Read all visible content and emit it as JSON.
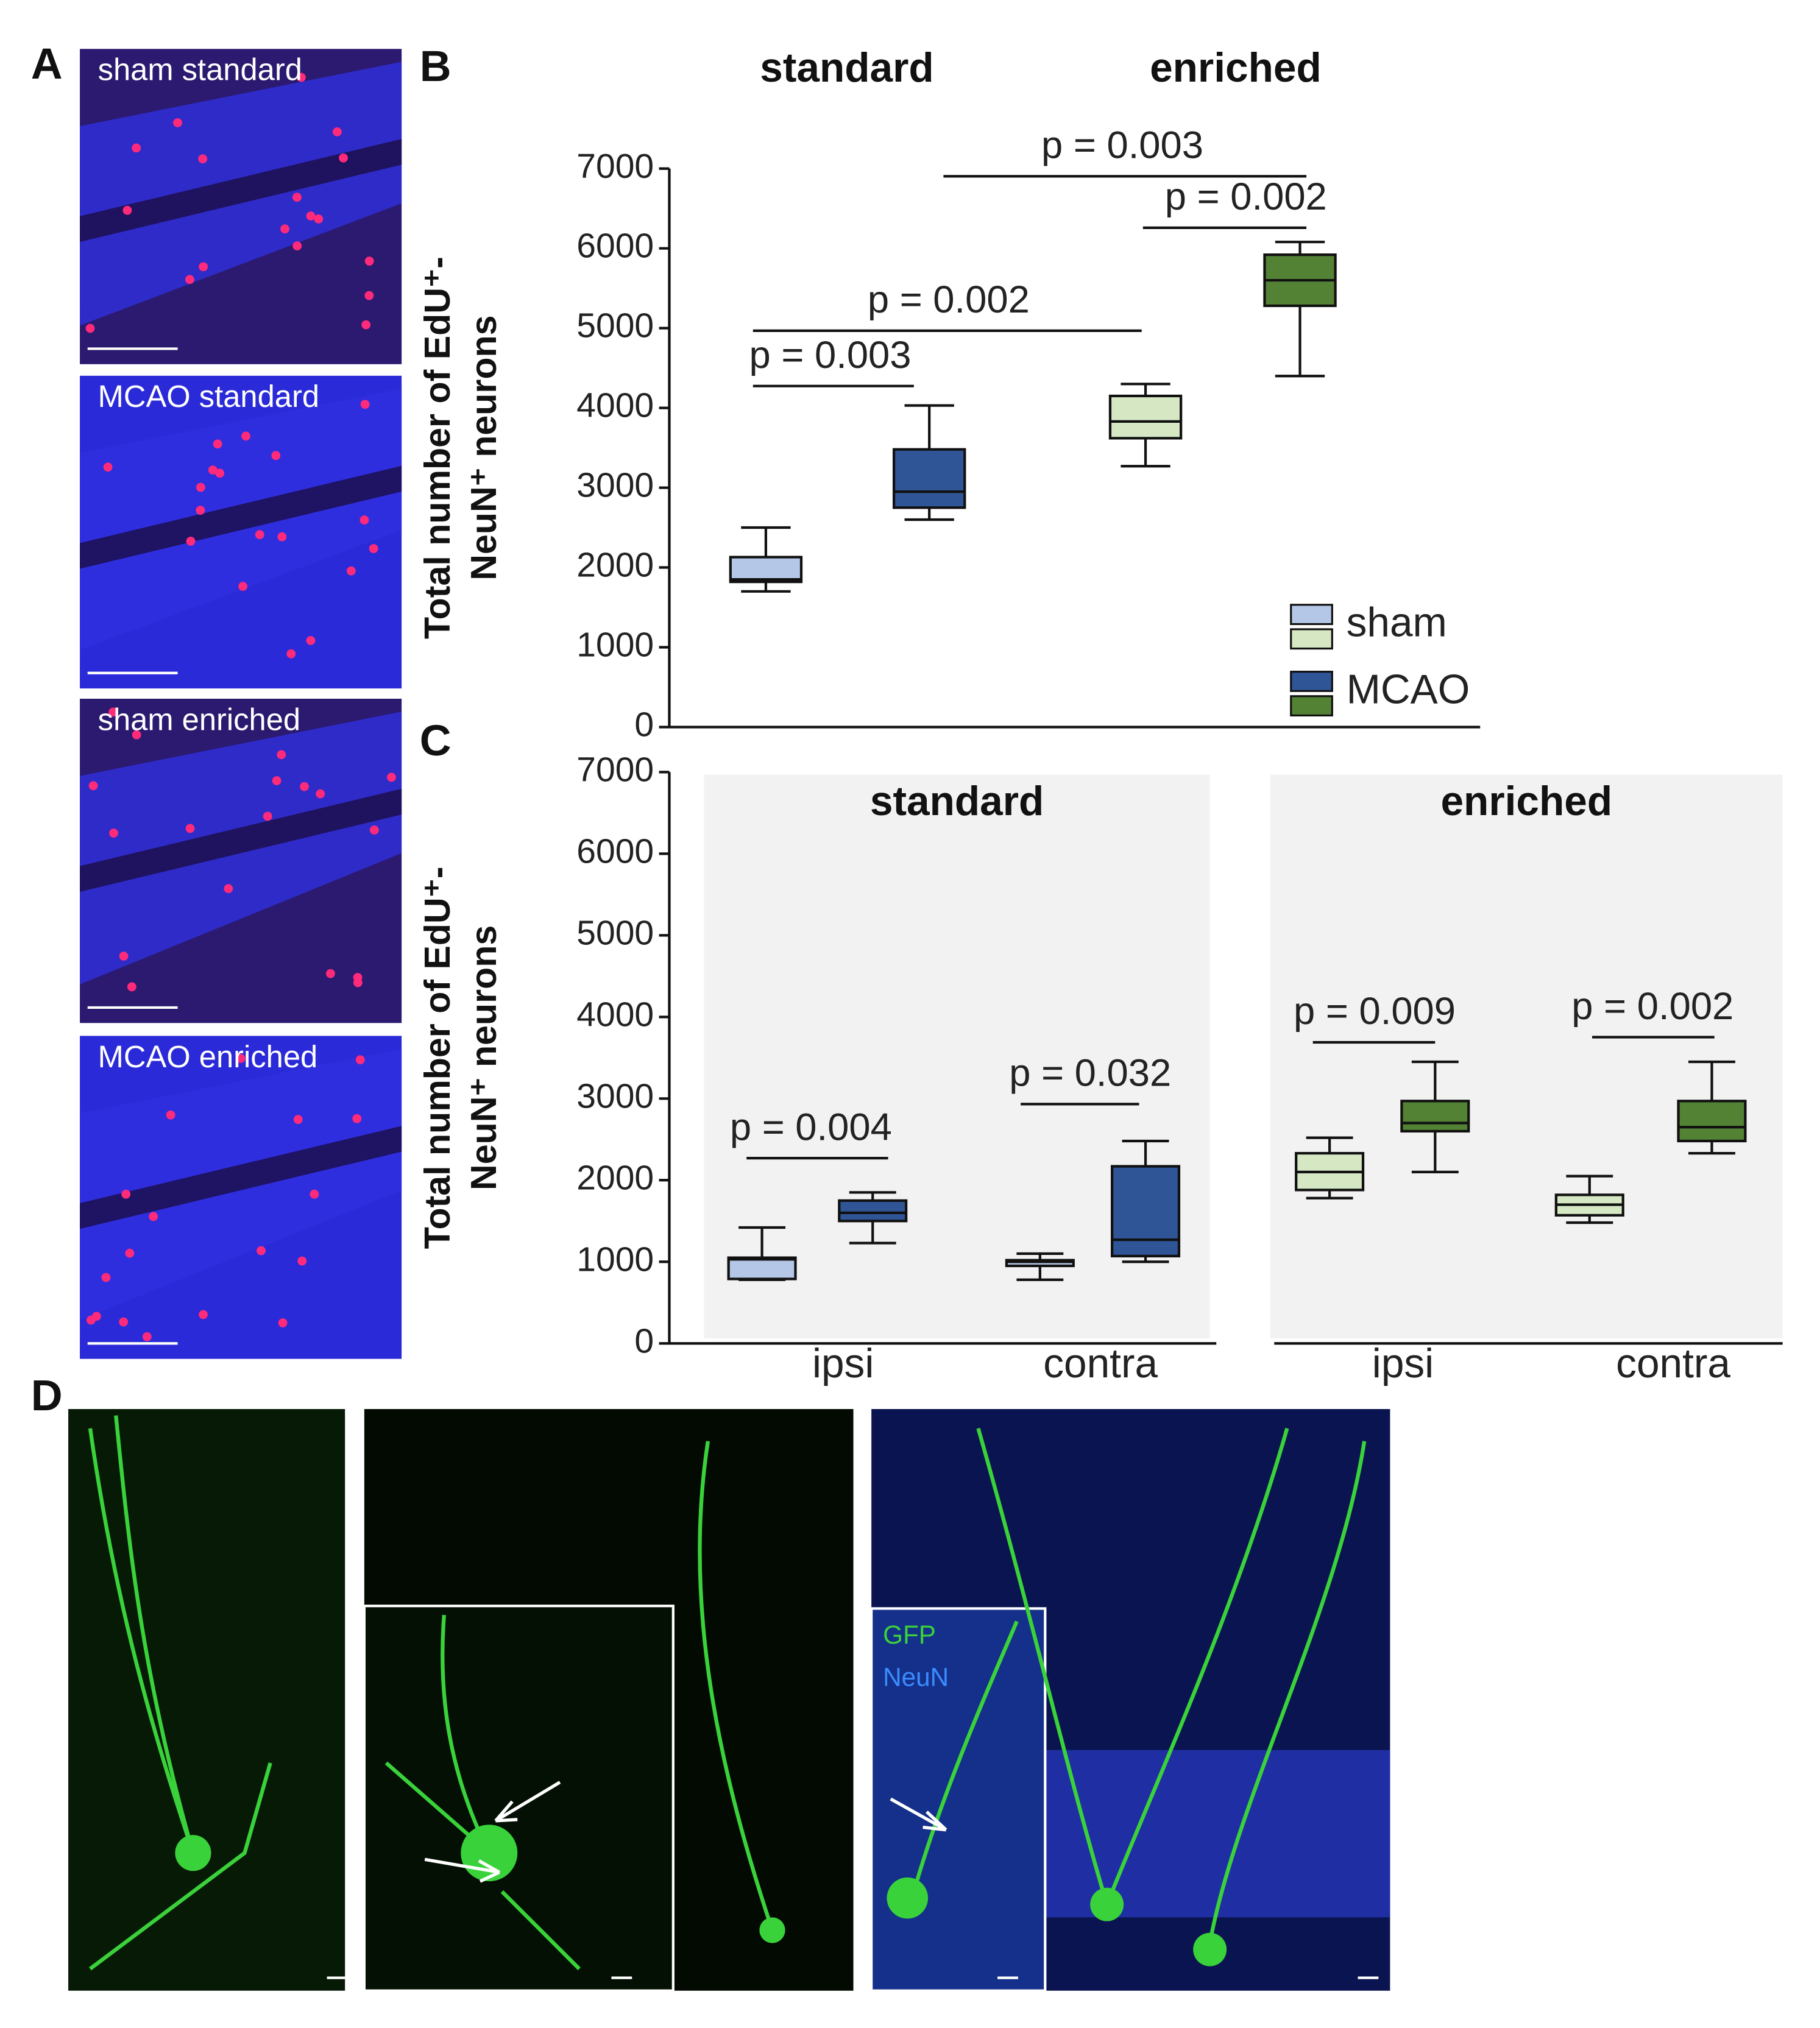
{
  "panel_labels": [
    "A",
    "B",
    "C",
    "D"
  ],
  "panel_a_labels": [
    "sham standard",
    "MCAO standard",
    "sham enriched",
    "MCAO enriched"
  ],
  "panel_d_labels": [
    "GFP",
    "NeuN"
  ],
  "chart_data": [
    {
      "type": "box",
      "ylabel": [
        "Total number of EdU⁺-",
        "NeuN⁺ neurons"
      ],
      "ylim": [
        0,
        7000
      ],
      "yticks": [
        0,
        1000,
        2000,
        3000,
        4000,
        5000,
        6000,
        7000
      ],
      "groups": [
        {
          "title": "standard",
          "boxes": [
            {
              "min": 1700,
              "q1": 1820,
              "median": 1850,
              "q3": 2130,
              "max": 2500,
              "color": "#b4c7e7"
            },
            {
              "min": 2600,
              "q1": 2750,
              "median": 2950,
              "q3": 3480,
              "max": 4030,
              "color": "#2f5597"
            }
          ]
        },
        {
          "title": "enriched",
          "boxes": [
            {
              "min": 3270,
              "q1": 3620,
              "median": 3830,
              "q3": 4150,
              "max": 4300,
              "color": "#d5e8c3"
            },
            {
              "min": 4400,
              "q1": 5280,
              "median": 5600,
              "q3": 5920,
              "max": 6080,
              "color": "#548235"
            }
          ]
        }
      ],
      "annotations": [
        "p = 0.003",
        "p = 0.002",
        "p = 0.003",
        "p = 0.002"
      ],
      "legend": [
        {
          "name": "sham",
          "colors": [
            "#b4c7e7",
            "#d5e8c3"
          ]
        },
        {
          "name": "MCAO",
          "colors": [
            "#2f5597",
            "#548235"
          ]
        }
      ]
    },
    {
      "type": "box",
      "ylabel": [
        "Total number of EdU⁺-",
        "NeuN⁺ neurons"
      ],
      "ylim": [
        0,
        7000
      ],
      "yticks": [
        0,
        1000,
        2000,
        3000,
        4000,
        5000,
        6000,
        7000
      ],
      "facets": [
        {
          "title": "standard",
          "groups": [
            {
              "label": "ipsi",
              "annotation": "p = 0.004",
              "boxes": [
                {
                  "min": 780,
                  "q1": 790,
                  "median": 1030,
                  "q3": 1050,
                  "max": 1420,
                  "color": "#b4c7e7"
                },
                {
                  "min": 1230,
                  "q1": 1500,
                  "median": 1600,
                  "q3": 1750,
                  "max": 1850,
                  "color": "#2f5597"
                }
              ]
            },
            {
              "label": "contra",
              "annotation": "p = 0.032",
              "boxes": [
                {
                  "min": 780,
                  "q1": 950,
                  "median": 1000,
                  "q3": 1020,
                  "max": 1100,
                  "color": "#b4c7e7"
                },
                {
                  "min": 1000,
                  "q1": 1070,
                  "median": 1270,
                  "q3": 2170,
                  "max": 2480,
                  "color": "#2f5597"
                }
              ]
            }
          ]
        },
        {
          "title": "enriched",
          "groups": [
            {
              "label": "ipsi",
              "annotation": "p = 0.009",
              "boxes": [
                {
                  "min": 1780,
                  "q1": 1880,
                  "median": 2100,
                  "q3": 2330,
                  "max": 2520,
                  "color": "#d5e8c3"
                },
                {
                  "min": 2100,
                  "q1": 2600,
                  "median": 2700,
                  "q3": 2970,
                  "max": 3450,
                  "color": "#548235"
                }
              ]
            },
            {
              "label": "contra",
              "annotation": "p = 0.002",
              "boxes": [
                {
                  "min": 1480,
                  "q1": 1570,
                  "median": 1700,
                  "q3": 1820,
                  "max": 2050,
                  "color": "#d5e8c3"
                },
                {
                  "min": 2330,
                  "q1": 2480,
                  "median": 2650,
                  "q3": 2970,
                  "max": 3450,
                  "color": "#548235"
                }
              ]
            }
          ]
        }
      ]
    }
  ]
}
